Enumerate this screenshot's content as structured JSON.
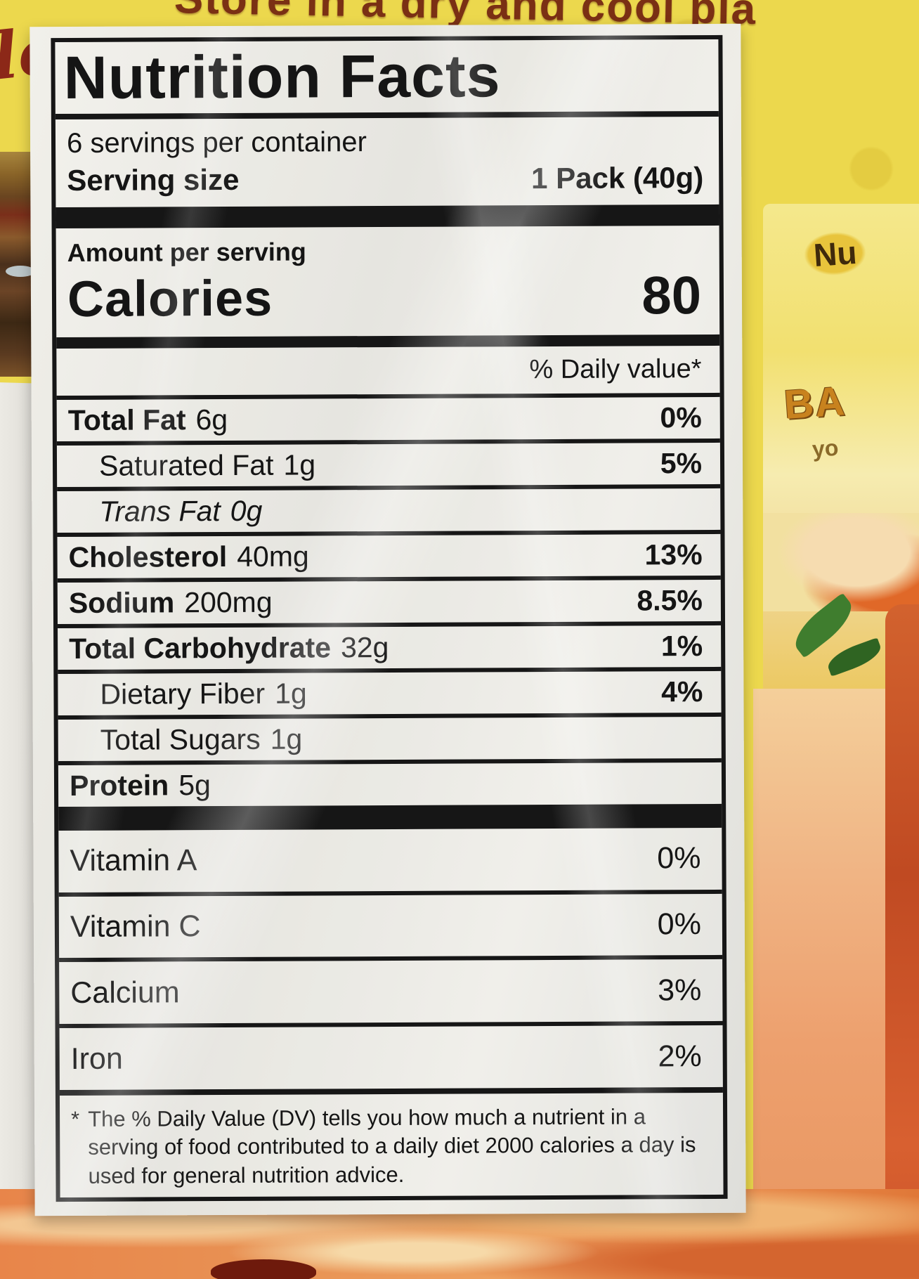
{
  "package": {
    "top_text": "Store in a dry and cool pla",
    "script_text": "lo",
    "right_product": {
      "logo_text": "Nu",
      "line1": "BA",
      "line2": "yo"
    }
  },
  "label": {
    "title": "Nutrition Facts",
    "servings_per_container": "6 servings per container",
    "serving_size_label": "Serving size",
    "serving_size_value": "1 Pack (40g)",
    "amount_per_serving": "Amount per serving",
    "calories_label": "Calories",
    "calories_value": "80",
    "daily_value_header": "% Daily value*",
    "nutrients": [
      {
        "name": "Total Fat",
        "amount": "6g",
        "dv": "0%"
      },
      {
        "name": "Saturated Fat",
        "amount": "1g",
        "dv": "5%"
      },
      {
        "name": "Trans Fat",
        "amount": "0g",
        "dv": ""
      },
      {
        "name": "Cholesterol",
        "amount": "40mg",
        "dv": "13%"
      },
      {
        "name": "Sodium",
        "amount": "200mg",
        "dv": "8.5%"
      },
      {
        "name": "Total Carbohydrate",
        "amount": "32g",
        "dv": "1%"
      },
      {
        "name": "Dietary Fiber",
        "amount": "1g",
        "dv": "4%"
      },
      {
        "name": "Total Sugars",
        "amount": "1g",
        "dv": ""
      },
      {
        "name": "Protein",
        "amount": "5g",
        "dv": ""
      }
    ],
    "micronutrients": [
      {
        "name": "Vitamin A",
        "dv": "0%"
      },
      {
        "name": "Vitamin C",
        "dv": "0%"
      },
      {
        "name": "Calcium",
        "dv": "3%"
      },
      {
        "name": "Iron",
        "dv": "2%"
      }
    ],
    "footnote_marker": "*",
    "footnote_text": "The % Daily Value (DV) tells you how much a nutrient in a serving of food contributed to a daily diet 2000 calories a day is used for general nutrition advice."
  }
}
